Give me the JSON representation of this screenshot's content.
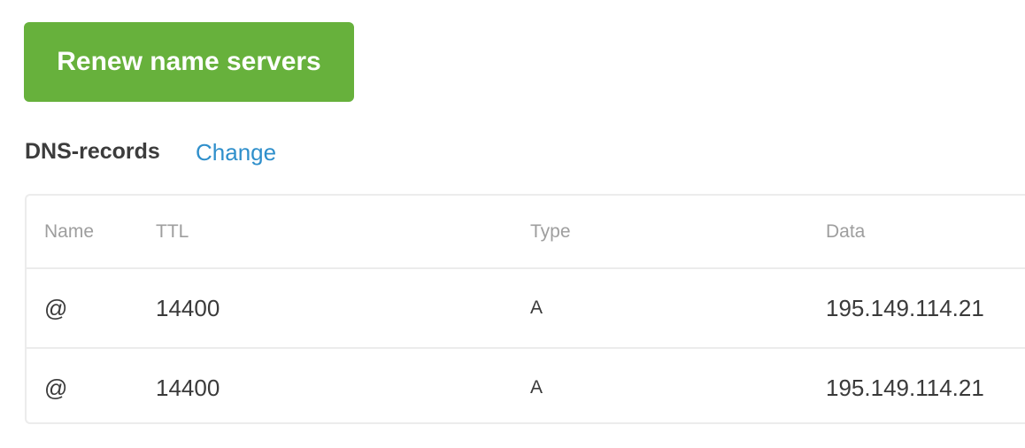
{
  "actions": {
    "renew_label": "Renew name servers",
    "accent": "#67b13c"
  },
  "dns": {
    "title": "DNS-records",
    "change_label": "Change",
    "columns": [
      "Name",
      "TTL",
      "Type",
      "Data"
    ],
    "rows": [
      [
        "@",
        "14400",
        "A",
        "195.149.114.21"
      ],
      [
        "@",
        "14400",
        "A",
        "195.149.114.21"
      ]
    ]
  }
}
